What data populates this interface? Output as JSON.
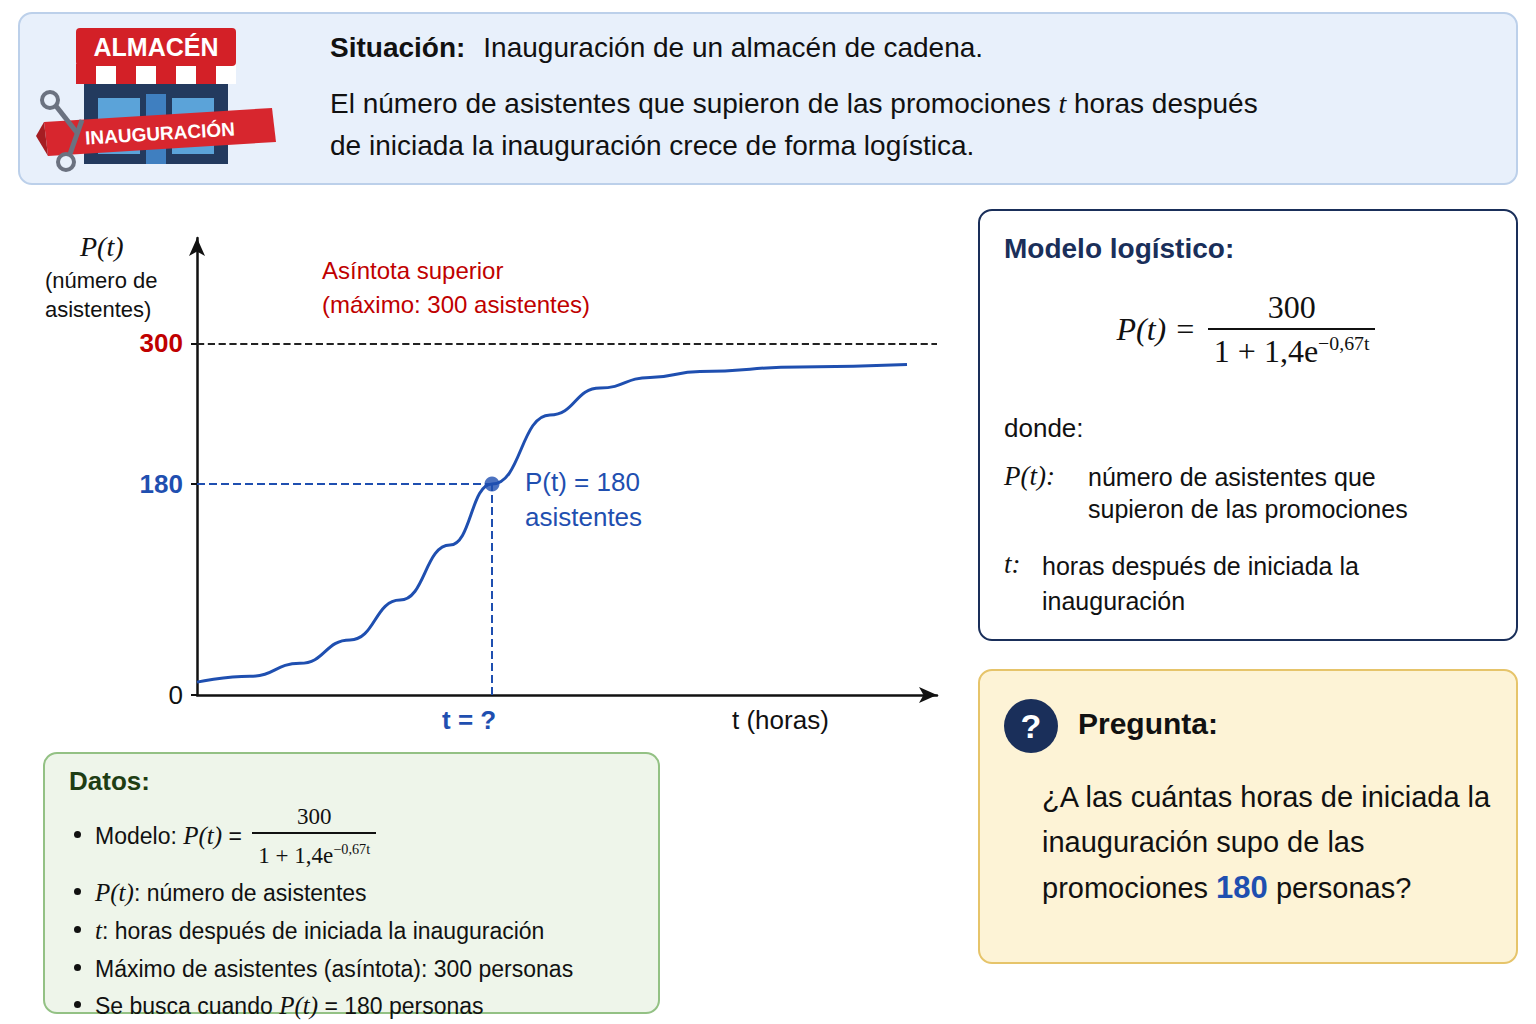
{
  "header": {
    "badge_top": "ALMACÉN",
    "badge_ribbon": "INAUGURACIÓN",
    "label": "Situación:",
    "line1": "Inauguración de un almacén de cadena.",
    "line2": [
      "El número de asistentes que supieron de las promociones ",
      "t",
      " horas después"
    ],
    "line3": "de iniciada la inauguración crece de forma logística."
  },
  "chart_data": {
    "type": "line",
    "y_title": "P(t)",
    "y_subtitle": "(número de asistentes)",
    "x_title": "t (horas)",
    "x": [
      0,
      53,
      103,
      153,
      203,
      253,
      295,
      353,
      403,
      453,
      503,
      603,
      710
    ],
    "values": [
      11,
      16,
      27,
      47,
      81,
      128,
      180,
      239,
      262,
      271,
      276,
      280,
      282
    ],
    "color": "#1f4fb0",
    "xlim": [
      0,
      740
    ],
    "ylim": [
      0,
      390
    ],
    "yticks": [
      0,
      180,
      300
    ],
    "grid": false,
    "tick_labels": "y",
    "asymptote": {
      "value": 300,
      "label": [
        "Asíntota superior",
        "(máximo: 300 asistentes)"
      ],
      "color": "#c00000"
    },
    "target": {
      "x": 295,
      "y": 180,
      "label": [
        "P(t) = 180",
        "asistentes"
      ],
      "x_label": "t = ?"
    }
  },
  "model": {
    "title": "Modelo logístico:",
    "lhs": "P(t) = ",
    "formula": {
      "numerator": "300",
      "denominator": "1 + 1,4e",
      "exponent": "−0,67t"
    },
    "where": "donde:",
    "defs": [
      {
        "sym": "P(t):",
        "text": "número de asistentes que supieron de las promociones"
      },
      {
        "sym": "t:",
        "text": "horas después de iniciada la inauguración"
      }
    ]
  },
  "data_box": {
    "title": "Datos:",
    "items": [
      {
        "lead": "Modelo: ",
        "sym": "P(t)",
        "rest": " = ",
        "formula": {
          "numerator": "300",
          "denominator": "1 + 1,4e",
          "exponent": "−0,67t"
        }
      },
      {
        "sym": "P(t)",
        "rest": ": número de asistentes"
      },
      {
        "sym": "t",
        "rest": ": horas después de iniciada la inauguración"
      },
      {
        "lead": "Máximo de asistentes (asíntota): 300 personas"
      },
      {
        "lead": "Se busca cuando ",
        "sym": "P(t)",
        "rest": " = 180 personas"
      }
    ]
  },
  "question": {
    "icon": "?",
    "title": "Pregunta:",
    "before": "¿A las cuántas horas de iniciada la inauguración supo de las promociones ",
    "highlight": "180",
    "after": " personas?"
  }
}
